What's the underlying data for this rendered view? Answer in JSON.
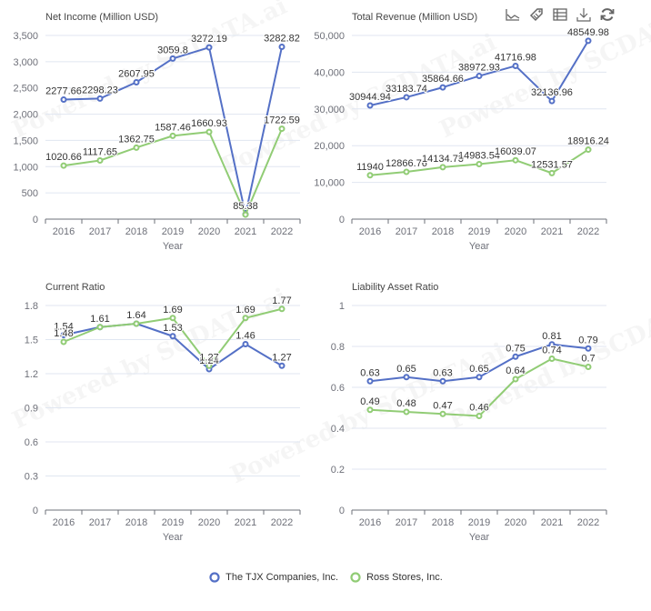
{
  "toolbar": {
    "icons": [
      "line-chart-icon",
      "tag-icon",
      "data-table-icon",
      "download-icon",
      "refresh-icon"
    ]
  },
  "legend": {
    "items": [
      {
        "label": "The TJX Companies, Inc.",
        "color": "#5470c6"
      },
      {
        "label": "Ross Stores, Inc.",
        "color": "#91cc75"
      }
    ]
  },
  "watermark_text": "Powered by SCDATA.ai",
  "chart_data": [
    {
      "type": "line",
      "title": "Net Income (Million USD)",
      "xlabel": "Year",
      "ylabel": "",
      "categories": [
        "2016",
        "2017",
        "2018",
        "2019",
        "2020",
        "2021",
        "2022"
      ],
      "ylim": [
        0,
        3500
      ],
      "yticks": [
        0,
        500,
        1000,
        1500,
        2000,
        2500,
        3000,
        3500
      ],
      "ytick_labels": [
        "0",
        "500",
        "1,000",
        "1,500",
        "2,000",
        "2,500",
        "3,000",
        "3,500"
      ],
      "grid": true,
      "series": [
        {
          "name": "The TJX Companies, Inc.",
          "color": "#5470c6",
          "values": [
            2277.66,
            2298.23,
            2607.95,
            3059.8,
            3272.19,
            90.47,
            3282.82
          ],
          "labels": [
            "2277.66",
            "2298.23",
            "2607.95",
            "3059.8",
            "3272.19",
            "",
            "3282.82"
          ]
        },
        {
          "name": "Ross Stores, Inc.",
          "color": "#91cc75",
          "values": [
            1020.66,
            1117.65,
            1362.75,
            1587.46,
            1660.93,
            85.38,
            1722.59
          ],
          "labels": [
            "1020.66",
            "1117.65",
            "1362.75",
            "1587.46",
            "1660.93",
            "85.38",
            "1722.59"
          ]
        }
      ]
    },
    {
      "type": "line",
      "title": "Total Revenue (Million USD)",
      "xlabel": "Year",
      "ylabel": "",
      "categories": [
        "2016",
        "2017",
        "2018",
        "2019",
        "2020",
        "2021",
        "2022"
      ],
      "ylim": [
        0,
        50000
      ],
      "yticks": [
        0,
        10000,
        20000,
        30000,
        40000,
        50000
      ],
      "ytick_labels": [
        "0",
        "10,000",
        "20,000",
        "30,000",
        "40,000",
        "50,000"
      ],
      "grid": true,
      "series": [
        {
          "name": "The TJX Companies, Inc.",
          "color": "#5470c6",
          "values": [
            30944.94,
            33183.74,
            35864.66,
            38972.93,
            41716.98,
            32136.96,
            48549.98
          ],
          "labels": [
            "30944.94",
            "33183.74",
            "35864.66",
            "38972.93",
            "41716.98",
            "32136.96",
            "48549.98"
          ]
        },
        {
          "name": "Ross Stores, Inc.",
          "color": "#91cc75",
          "values": [
            11940,
            12866.76,
            14134.73,
            14983.54,
            16039.07,
            12531.57,
            18916.24
          ],
          "labels": [
            "11940",
            "12866.76",
            "14134.73",
            "14983.54",
            "16039.07",
            "12531.57",
            "18916.24"
          ]
        }
      ]
    },
    {
      "type": "line",
      "title": "Current Ratio",
      "xlabel": "Year",
      "ylabel": "",
      "categories": [
        "2016",
        "2017",
        "2018",
        "2019",
        "2020",
        "2021",
        "2022"
      ],
      "ylim": [
        0,
        1.8
      ],
      "yticks": [
        0,
        0.3,
        0.6,
        0.9,
        1.2,
        1.5,
        1.8
      ],
      "ytick_labels": [
        "0",
        "0.3",
        "0.6",
        "0.9",
        "1.2",
        "1.5",
        "1.8"
      ],
      "grid": true,
      "series": [
        {
          "name": "The TJX Companies, Inc.",
          "color": "#5470c6",
          "values": [
            1.54,
            1.61,
            1.64,
            1.53,
            1.24,
            1.46,
            1.27
          ],
          "labels": [
            "1.54",
            "1.61",
            "1.64",
            "1.53",
            "1.24",
            "1.46",
            "1.27"
          ]
        },
        {
          "name": "Ross Stores, Inc.",
          "color": "#91cc75",
          "values": [
            1.48,
            1.61,
            1.64,
            1.69,
            1.27,
            1.69,
            1.77
          ],
          "labels": [
            "1.48",
            "1.61",
            "1.64",
            "1.69",
            "1.27",
            "1.69",
            "1.77"
          ]
        }
      ]
    },
    {
      "type": "line",
      "title": "Liability Asset Ratio",
      "xlabel": "Year",
      "ylabel": "",
      "categories": [
        "2016",
        "2017",
        "2018",
        "2019",
        "2020",
        "2021",
        "2022"
      ],
      "ylim": [
        0,
        1
      ],
      "yticks": [
        0,
        0.2,
        0.4,
        0.6,
        0.8,
        1
      ],
      "ytick_labels": [
        "0",
        "0.2",
        "0.4",
        "0.6",
        "0.8",
        "1"
      ],
      "grid": true,
      "series": [
        {
          "name": "The TJX Companies, Inc.",
          "color": "#5470c6",
          "values": [
            0.63,
            0.65,
            0.63,
            0.65,
            0.75,
            0.81,
            0.79
          ],
          "labels": [
            "0.63",
            "0.65",
            "0.63",
            "0.65",
            "0.75",
            "0.81",
            "0.79"
          ]
        },
        {
          "name": "Ross Stores, Inc.",
          "color": "#91cc75",
          "values": [
            0.49,
            0.48,
            0.47,
            0.46,
            0.64,
            0.74,
            0.7
          ],
          "labels": [
            "0.49",
            "0.48",
            "0.47",
            "0.46",
            "0.64",
            "0.74",
            "0.7"
          ]
        }
      ]
    }
  ]
}
